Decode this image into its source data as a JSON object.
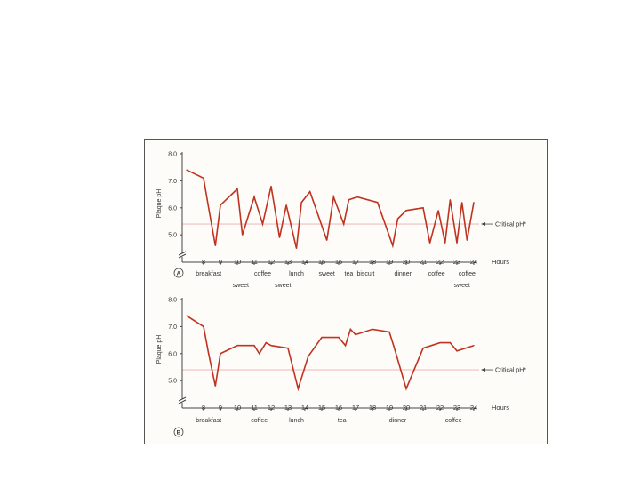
{
  "chart_data": [
    {
      "type": "line",
      "panel_label": "A",
      "ylabel": "Plaque pH",
      "xlabel": "Hours",
      "ylim": [
        4.0,
        8.0
      ],
      "yticks": [
        "8.0",
        "7.0",
        "6.0",
        "5.0"
      ],
      "xlim": [
        7,
        24
      ],
      "xticks": [
        "8",
        "9",
        "10",
        "11",
        "12",
        "13",
        "14",
        "15",
        "16",
        "17",
        "18",
        "19",
        "20",
        "21",
        "22",
        "23",
        "24"
      ],
      "critical_label": "Critical pH*",
      "critical_ph": 5.4,
      "events_row1": [
        {
          "x": 8.3,
          "label": "breakfast"
        },
        {
          "x": 11.5,
          "label": "coffee"
        },
        {
          "x": 13.5,
          "label": "lunch"
        },
        {
          "x": 15.3,
          "label": "sweet"
        },
        {
          "x": 16.6,
          "label": "tea"
        },
        {
          "x": 17.6,
          "label": "biscuit"
        },
        {
          "x": 19.8,
          "label": "dinner"
        },
        {
          "x": 21.8,
          "label": "coffee"
        },
        {
          "x": 23.6,
          "label": "coffee"
        }
      ],
      "events_row2": [
        {
          "x": 10.2,
          "label": "sweet"
        },
        {
          "x": 12.7,
          "label": "sweet"
        },
        {
          "x": 23.3,
          "label": "sweet"
        }
      ],
      "series": [
        {
          "x": [
            7.0,
            8.0,
            8.3,
            8.7,
            9.0,
            10.0,
            10.3,
            11.0,
            11.5,
            12.0,
            12.5,
            12.9,
            13.5,
            13.8,
            14.3,
            15.3,
            15.7,
            16.3,
            16.6,
            17.1,
            18.3,
            19.2,
            19.5,
            20.0,
            21.0,
            21.4,
            21.9,
            22.3,
            22.6,
            23.0,
            23.3,
            23.6,
            24.0
          ],
          "y": [
            7.4,
            7.1,
            6.0,
            4.6,
            6.1,
            6.7,
            5.0,
            6.4,
            5.4,
            6.8,
            4.9,
            6.1,
            4.5,
            6.2,
            6.6,
            4.8,
            6.4,
            5.4,
            6.3,
            6.4,
            6.2,
            4.6,
            5.6,
            5.9,
            6.0,
            4.7,
            5.9,
            4.7,
            6.3,
            4.7,
            6.2,
            4.8,
            6.2
          ]
        }
      ]
    },
    {
      "type": "line",
      "panel_label": "B",
      "ylabel": "Plaque pH",
      "xlabel": "Hours",
      "ylim": [
        4.0,
        8.0
      ],
      "yticks": [
        "8.0",
        "7.0",
        "6.0",
        "5.0"
      ],
      "xlim": [
        7,
        24
      ],
      "xticks": [
        "8",
        "9",
        "10",
        "11",
        "12",
        "13",
        "14",
        "15",
        "16",
        "17",
        "18",
        "19",
        "20",
        "21",
        "22",
        "23",
        "24"
      ],
      "critical_label": "Critical pH*",
      "critical_ph": 5.4,
      "events_row1": [
        {
          "x": 8.3,
          "label": "breakfast"
        },
        {
          "x": 11.3,
          "label": "coffee"
        },
        {
          "x": 13.5,
          "label": "lunch"
        },
        {
          "x": 16.2,
          "label": "tea"
        },
        {
          "x": 19.5,
          "label": "dinner"
        },
        {
          "x": 22.8,
          "label": "coffee"
        }
      ],
      "events_row2": [],
      "series": [
        {
          "x": [
            7.0,
            8.0,
            8.3,
            8.7,
            9.0,
            10.0,
            11.0,
            11.3,
            11.7,
            12.0,
            13.0,
            13.6,
            14.2,
            15.0,
            16.0,
            16.4,
            16.7,
            17.0,
            18.0,
            19.0,
            19.3,
            20.0,
            21.0,
            22.0,
            22.6,
            23.0,
            24.0
          ],
          "y": [
            7.4,
            7.0,
            6.0,
            4.8,
            6.0,
            6.3,
            6.3,
            6.0,
            6.4,
            6.3,
            6.2,
            4.7,
            5.9,
            6.6,
            6.6,
            6.3,
            6.9,
            6.7,
            6.9,
            6.8,
            6.2,
            4.7,
            6.2,
            6.4,
            6.4,
            6.1,
            6.3
          ]
        }
      ]
    }
  ],
  "colors": {
    "line": "#c03320",
    "critical_line": "#f1c9c9",
    "axis": "#444444",
    "text": "#333333"
  }
}
